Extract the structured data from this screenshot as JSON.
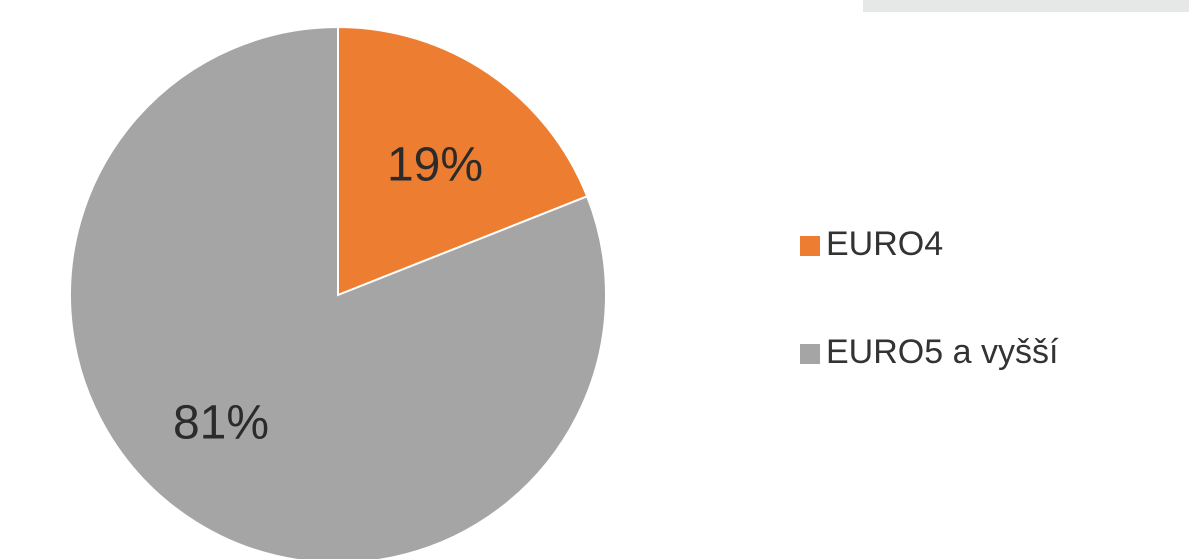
{
  "chart_data": {
    "type": "pie",
    "title": "",
    "slices": [
      {
        "label": "EURO4",
        "value": 19,
        "display": "19%",
        "color": "#ed7d31"
      },
      {
        "label": "EURO5 a vyšší",
        "value": 81,
        "display": "81%",
        "color": "#a5a5a5"
      }
    ],
    "start_angle_deg": 0,
    "direction": "clockwise",
    "legend": {
      "placement": "right"
    }
  }
}
